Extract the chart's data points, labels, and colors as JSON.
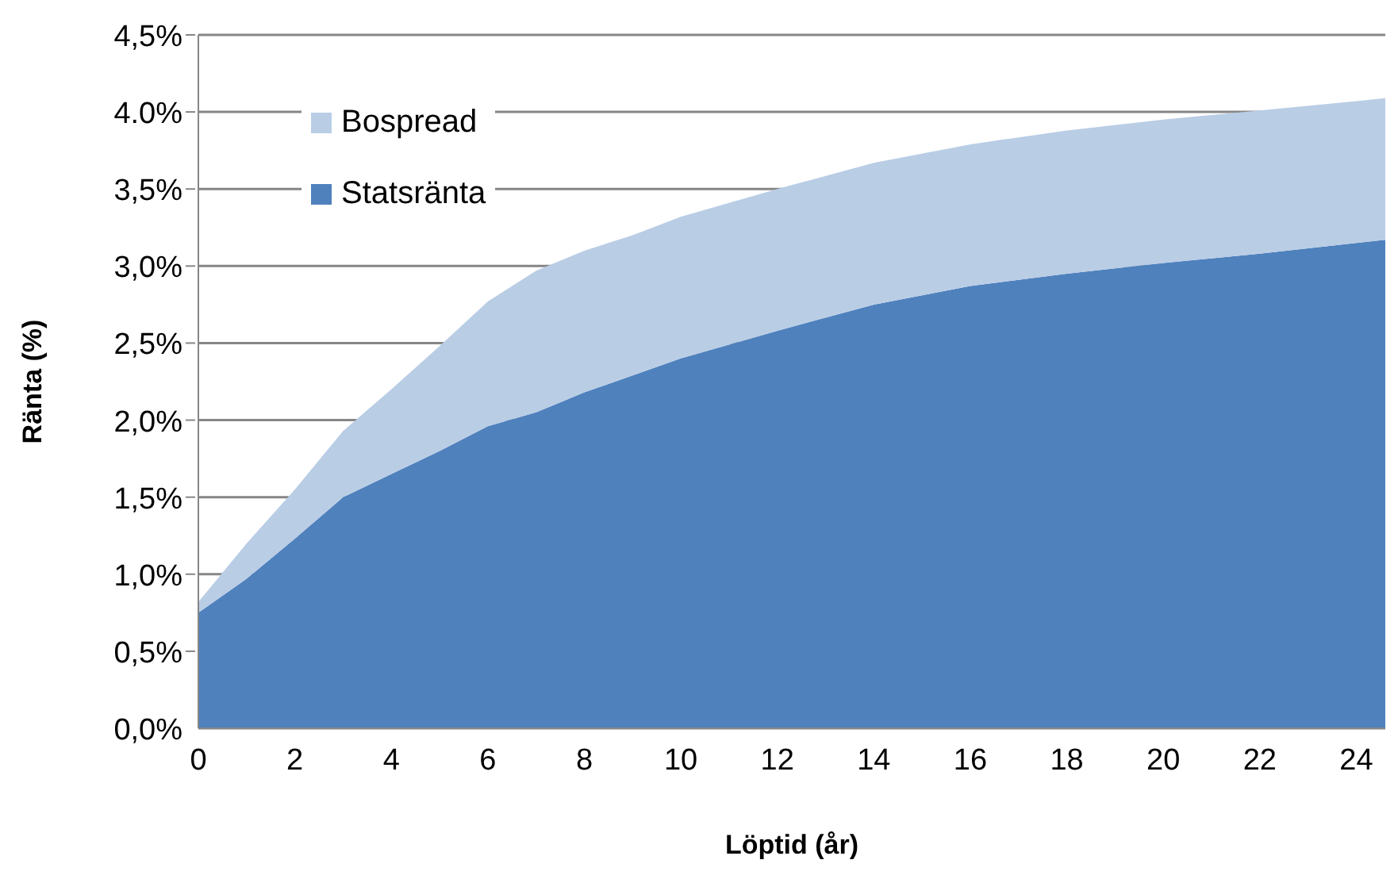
{
  "chart_data": {
    "type": "area",
    "stacked": true,
    "xlabel": "Löptid (år)",
    "ylabel": "Ränta (%)",
    "x": [
      0,
      1,
      2,
      3,
      4,
      5,
      6,
      7,
      8,
      9,
      10,
      12,
      14,
      16,
      18,
      20,
      22,
      24,
      24.6
    ],
    "series": [
      {
        "name": "Statsränta",
        "color": "#4f81bd",
        "values": [
          0.75,
          0.97,
          1.23,
          1.5,
          1.65,
          1.8,
          1.96,
          2.05,
          2.18,
          2.29,
          2.4,
          2.58,
          2.75,
          2.87,
          2.95,
          3.02,
          3.08,
          3.15,
          3.17
        ]
      },
      {
        "name": "Bospread",
        "color": "#b9cde5",
        "values": [
          0.07,
          0.23,
          0.32,
          0.43,
          0.55,
          0.68,
          0.81,
          0.92,
          0.92,
          0.91,
          0.92,
          0.92,
          0.92,
          0.92,
          0.93,
          0.93,
          0.93,
          0.92,
          0.92
        ]
      }
    ],
    "xlim": [
      0,
      24.6
    ],
    "xticks": [
      0,
      2,
      4,
      6,
      8,
      10,
      12,
      14,
      16,
      18,
      20,
      22,
      24
    ],
    "ylim": [
      0,
      4.5
    ],
    "yticks": [
      {
        "value": 0,
        "label": "0,0%"
      },
      {
        "value": 0.5,
        "label": "0,5%"
      },
      {
        "value": 1,
        "label": "1,0%"
      },
      {
        "value": 1.5,
        "label": "1,5%"
      },
      {
        "value": 2,
        "label": "2,0%"
      },
      {
        "value": 2.5,
        "label": "2,5%"
      },
      {
        "value": 3,
        "label": "3,0%"
      },
      {
        "value": 3.5,
        "label": "3,5%"
      },
      {
        "value": 4,
        "label": "4.0%"
      },
      {
        "value": 4.5,
        "label": "4,5%"
      }
    ],
    "grid": "y",
    "legend": "top left",
    "marker": "none"
  }
}
